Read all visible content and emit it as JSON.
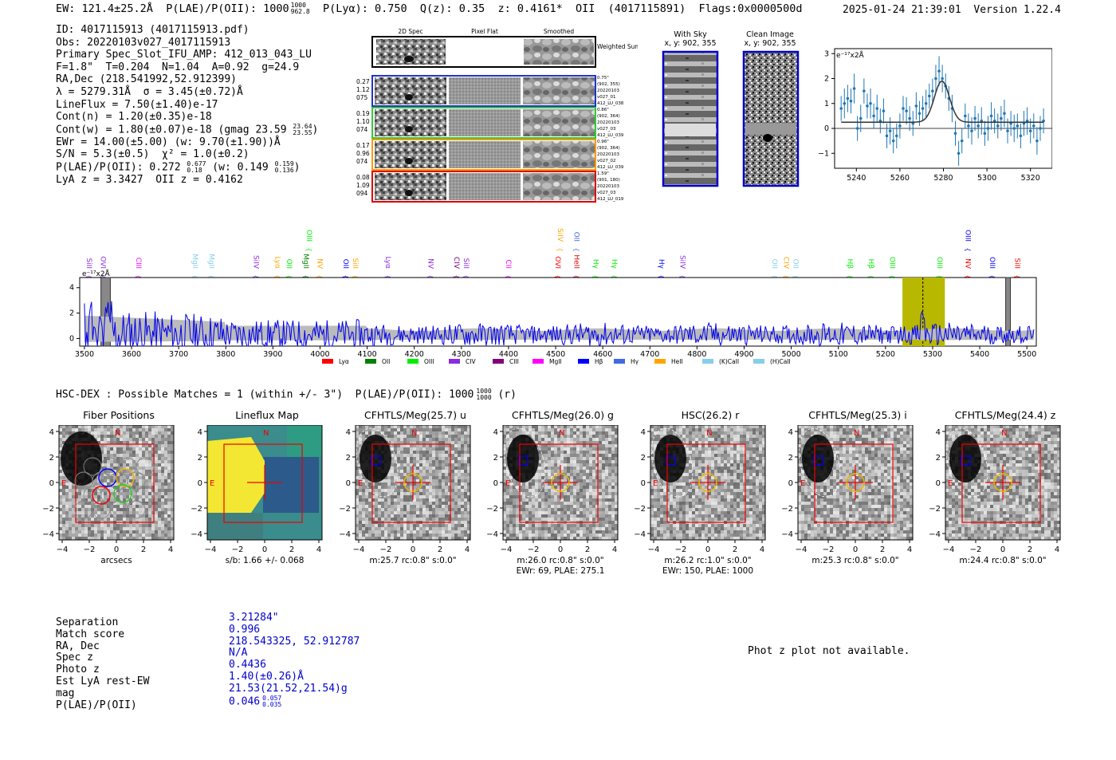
{
  "header": {
    "ew": "EW: 121.4±25.2Å",
    "plae_label": "P(LAE)/P(OII): 1000",
    "plae_sup": "1000",
    "plae_sub": "962.8",
    "plya": "P(Lyα): 0.750",
    "qz": "Q(z): 0.35",
    "z": "z: 0.4161*",
    "line": "OII",
    "id_paren": "(4017115891)",
    "flags": "Flags:0x0000500d",
    "datetime": "2025-01-24 21:39:01",
    "version": "Version 1.22.4"
  },
  "info": {
    "id": "ID: 4017115913 (4017115913.pdf)",
    "obs": "Obs: 20220103v027_4017115913",
    "slot": "Primary Spec_Slot_IFU_AMP: 412_013_043_LU",
    "params": "F=1.8\"  T=0.204  N=1.04  A=0.92  g=24.9",
    "radec": "RA,Dec (218.541992,52.912399)",
    "lambda": "λ = 5279.31Å  σ = 3.45(±0.72)Å",
    "lineflux": "LineFlux = 7.50(±1.40)e-17",
    "contn": "Cont(n) = 1.20(±0.35)e-18",
    "contw": "Cont(w) = 1.80(±0.07)e-18 (gmag 23.59",
    "contw_sup": "23.64",
    "contw_sub": "23.55",
    "contw_end": ")",
    "ewr": "EWr = 14.00(±5.00) (w: 9.70(±1.90))Å",
    "sn": "S/N = 5.3(±0.5)  χ² = 1.0(±0.2)",
    "plae": "P(LAE)/P(OII): 0.272",
    "plae_sup": "0.677",
    "plae_sub": "0.18",
    "plae_w": " (w: 0.149",
    "plae_w_sup": "0.159",
    "plae_w_sub": "0.136",
    "plae_w_end": ")",
    "lyaz": "LyA z = 3.3427  OII z = 0.4162"
  },
  "spec_panel": {
    "col_titles": [
      "2D Spec",
      "Pixel Flat",
      "Smoothed"
    ],
    "weighted_sum": "Weighted Sum",
    "rows": [
      {
        "left": [
          "0.27",
          "1.12",
          "075"
        ],
        "right": [
          "0.75\"",
          "(902, 355)",
          "20220103",
          "v027_01",
          "412_LU_038"
        ],
        "color": "#2233cc"
      },
      {
        "left": [
          "0.19",
          "1.10",
          "074"
        ],
        "right": [
          "0.86\"",
          "(902, 364)",
          "20220103",
          "v027_03",
          "412_LU_039"
        ],
        "color": "#33cc33"
      },
      {
        "left": [
          "0.17",
          "0.96",
          "074"
        ],
        "right": [
          "0.96\"",
          "(902, 364)",
          "20220103",
          "v027_02",
          "412_LU_039"
        ],
        "color": "#ff9900"
      },
      {
        "left": [
          "0.08",
          "1.09",
          "094"
        ],
        "right": [
          "1.59\"",
          "(901, 180)",
          "20220103",
          "v027_03",
          "412_LU_019"
        ],
        "color": "#dd0000"
      }
    ]
  },
  "sky": {
    "with_sky_title": "With Sky",
    "with_sky_coords": "x, y: 902, 355",
    "clean_title": "Clean Image",
    "clean_coords": "x, y: 902, 355"
  },
  "chart_data": [
    {
      "id": "line-zoom",
      "type": "scatter",
      "title": "",
      "ylabel": "e⁻¹⁷x2Å",
      "xlim": [
        5230,
        5330
      ],
      "ylim": [
        -1.6,
        3.2
      ],
      "xticks": [
        5240,
        5260,
        5280,
        5300,
        5320
      ],
      "yticks": [
        -1,
        0,
        1,
        2,
        3
      ],
      "points": [
        [
          5233,
          0.8,
          0.5
        ],
        [
          5234.5,
          1.0,
          0.6
        ],
        [
          5236,
          1.2,
          0.55
        ],
        [
          5237.5,
          1.1,
          0.5
        ],
        [
          5239,
          1.6,
          0.6
        ],
        [
          5240.5,
          0.0,
          0.5
        ],
        [
          5242,
          0.4,
          0.55
        ],
        [
          5243.5,
          1.5,
          0.5
        ],
        [
          5245,
          0.9,
          0.5
        ],
        [
          5246.5,
          1.0,
          0.6
        ],
        [
          5248,
          0.5,
          0.5
        ],
        [
          5249.5,
          0.8,
          0.55
        ],
        [
          5251,
          0.3,
          0.5
        ],
        [
          5252.5,
          0.7,
          0.5
        ],
        [
          5254,
          -0.3,
          0.5
        ],
        [
          5255.5,
          -0.1,
          0.55
        ],
        [
          5257,
          -0.5,
          0.5
        ],
        [
          5258.5,
          -0.3,
          0.5
        ],
        [
          5260,
          0.1,
          0.5
        ],
        [
          5261.5,
          0.8,
          0.5
        ],
        [
          5263,
          0.7,
          0.55
        ],
        [
          5264.5,
          0.4,
          0.5
        ],
        [
          5266,
          0.2,
          0.5
        ],
        [
          5267.5,
          0.9,
          0.55
        ],
        [
          5269,
          0.6,
          0.5
        ],
        [
          5270.5,
          0.8,
          0.5
        ],
        [
          5272,
          1.0,
          0.55
        ],
        [
          5273.5,
          1.3,
          0.5
        ],
        [
          5275,
          1.5,
          0.5
        ],
        [
          5276.5,
          2.0,
          0.55
        ],
        [
          5278,
          2.3,
          0.6
        ],
        [
          5279.5,
          2.0,
          0.55
        ],
        [
          5281,
          1.7,
          0.5
        ],
        [
          5282.5,
          1.2,
          0.5
        ],
        [
          5284,
          0.8,
          0.55
        ],
        [
          5285.5,
          -0.2,
          0.5
        ],
        [
          5287,
          -1.0,
          0.5
        ],
        [
          5288.5,
          -0.5,
          0.5
        ],
        [
          5290,
          0.5,
          0.5
        ],
        [
          5291.5,
          0.1,
          0.5
        ],
        [
          5293,
          -0.1,
          0.55
        ],
        [
          5294.5,
          0.4,
          0.5
        ],
        [
          5296,
          0.1,
          0.5
        ],
        [
          5297.5,
          0.3,
          0.55
        ],
        [
          5299,
          -0.2,
          0.5
        ],
        [
          5300.5,
          0.0,
          0.5
        ],
        [
          5302,
          0.5,
          0.55
        ],
        [
          5303.5,
          0.3,
          0.5
        ],
        [
          5305,
          0.1,
          0.5
        ],
        [
          5306.5,
          0.4,
          0.5
        ],
        [
          5308,
          0.6,
          0.55
        ],
        [
          5309.5,
          -0.1,
          0.5
        ],
        [
          5311,
          0.2,
          0.5
        ],
        [
          5312.5,
          0.0,
          0.55
        ],
        [
          5314,
          0.1,
          0.5
        ],
        [
          5315.5,
          -0.3,
          0.5
        ],
        [
          5317,
          0.2,
          0.5
        ],
        [
          5318.5,
          0.3,
          0.55
        ],
        [
          5320,
          -0.1,
          0.5
        ],
        [
          5321.5,
          0.1,
          0.5
        ],
        [
          5323,
          -0.5,
          0.55
        ],
        [
          5324.5,
          0.0,
          0.5
        ],
        [
          5326,
          0.3,
          0.5
        ]
      ],
      "fit": {
        "center": 5279.3,
        "sigma": 3.45,
        "amp": 1.65,
        "baseline": 0.25
      }
    },
    {
      "id": "full-spectrum",
      "type": "line",
      "ylabel": "e⁻¹⁷x2Å",
      "xlim": [
        3490,
        5520
      ],
      "ylim": [
        -0.6,
        4.8
      ],
      "xticks": [
        3500,
        3600,
        3700,
        3800,
        3900,
        4000,
        4100,
        4200,
        4300,
        4400,
        4500,
        4600,
        4700,
        4800,
        4900,
        5000,
        5100,
        5200,
        5300,
        5400,
        5500
      ],
      "yticks": [
        0,
        2,
        4
      ],
      "highlight": [
        5236,
        5326
      ],
      "line_center": 5279.3,
      "gray_bands": [
        [
          3535,
          3555
        ],
        [
          5455,
          5465
        ]
      ],
      "legend": [
        {
          "label": "Lyα",
          "color": "#ff0000"
        },
        {
          "label": "OII",
          "color": "#008000"
        },
        {
          "label": "OIII",
          "color": "#00ee00"
        },
        {
          "label": "CIV",
          "color": "#8a2be2"
        },
        {
          "label": "CIII",
          "color": "#800080"
        },
        {
          "label": "MgII",
          "color": "#ff00ff"
        },
        {
          "label": "Hβ",
          "color": "#0000ff"
        },
        {
          "label": "Hγ",
          "color": "#4169e1"
        },
        {
          "label": "HeII",
          "color": "#ffa500"
        },
        {
          "label": "(K)CaII",
          "color": "#87ceeb"
        },
        {
          "label": "(H)CaII",
          "color": "#87ceeb"
        }
      ],
      "line_labels": [
        {
          "w": 3505,
          "t": "SiII",
          "c": "#8a2be2",
          "hi": false
        },
        {
          "w": 3535,
          "t": "OVI",
          "c": "#8a2be2",
          "hi": false
        },
        {
          "w": 3610,
          "t": "CIII",
          "c": "#ff00ff",
          "hi": false
        },
        {
          "w": 3730,
          "t": "MgII",
          "c": "#87ceeb",
          "hi": false
        },
        {
          "w": 3765,
          "t": "MgII",
          "c": "#87ceeb",
          "hi": false
        },
        {
          "w": 3860,
          "t": "SiIV",
          "c": "#8a2be2",
          "hi": false
        },
        {
          "w": 3905,
          "t": "Lyα",
          "c": "#ffa500",
          "hi": false
        },
        {
          "w": 3930,
          "t": "OII",
          "c": "#00ee00",
          "hi": false
        },
        {
          "w": 3965,
          "t": "MgII",
          "c": "#008000",
          "hi": false
        },
        {
          "w": 3972,
          "t": "OIII",
          "c": "#00ee00",
          "hi": true
        },
        {
          "w": 3995,
          "t": "NV",
          "c": "#ffa500",
          "hi": false
        },
        {
          "w": 4050,
          "t": "OII",
          "c": "#0000ff",
          "hi": false
        },
        {
          "w": 4070,
          "t": "SiII",
          "c": "#ffa500",
          "hi": false
        },
        {
          "w": 4140,
          "t": "Lyα",
          "c": "#8a2be2",
          "hi": false
        },
        {
          "w": 4230,
          "t": "NV",
          "c": "#8a2be2",
          "hi": false
        },
        {
          "w": 4285,
          "t": "CIV",
          "c": "#800080",
          "hi": false
        },
        {
          "w": 4305,
          "t": "SiII",
          "c": "#8a2be2",
          "hi": false
        },
        {
          "w": 4395,
          "t": "CII",
          "c": "#ff00ff",
          "hi": false
        },
        {
          "w": 4500,
          "t": "OVI",
          "c": "#ff0000",
          "hi": false
        },
        {
          "w": 4505,
          "t": "SiIV",
          "c": "#ffa500",
          "hi": true
        },
        {
          "w": 4540,
          "t": "OII",
          "c": "#4169e1",
          "hi": true
        },
        {
          "w": 4540,
          "t": "HeII",
          "c": "#dd0000",
          "hi": false
        },
        {
          "w": 4580,
          "t": "Hγ",
          "c": "#00ee00",
          "hi": false
        },
        {
          "w": 4620,
          "t": "Hγ",
          "c": "#00ee00",
          "hi": false
        },
        {
          "w": 4720,
          "t": "Hγ",
          "c": "#0000ff",
          "hi": false
        },
        {
          "w": 4765,
          "t": "SiIV",
          "c": "#8a2be2",
          "hi": false
        },
        {
          "w": 4960,
          "t": "OII",
          "c": "#87ceeb",
          "hi": false
        },
        {
          "w": 4985,
          "t": "CIV",
          "c": "#ffa500",
          "hi": false
        },
        {
          "w": 5005,
          "t": "OII",
          "c": "#87ceeb",
          "hi": false
        },
        {
          "w": 5120,
          "t": "Hβ",
          "c": "#00ee00",
          "hi": false
        },
        {
          "w": 5165,
          "t": "Hβ",
          "c": "#00ee00",
          "hi": false
        },
        {
          "w": 5210,
          "t": "OIII",
          "c": "#00ee00",
          "hi": false
        },
        {
          "w": 5310,
          "t": "OIII",
          "c": "#00ee00",
          "hi": false
        },
        {
          "w": 5370,
          "t": "NV",
          "c": "#ff0000",
          "hi": false
        },
        {
          "w": 5370,
          "t": "OIII",
          "c": "#0000ff",
          "hi": true
        },
        {
          "w": 5422,
          "t": "OIII",
          "c": "#0000ff",
          "hi": false
        },
        {
          "w": 5475,
          "t": "SiII",
          "c": "#ff0000",
          "hi": false
        }
      ]
    }
  ],
  "hsc": {
    "title": "HSC-DEX : Possible Matches = 1 (within +/- 3\")  P(LAE)/P(OII): 1000",
    "title_sup": "1000",
    "title_sub": "1000",
    "title_end": " (r)"
  },
  "cutouts": [
    {
      "title": "Fiber Positions",
      "cap1": "arcsecs",
      "cap2": "",
      "type": "fiber"
    },
    {
      "title": "Lineflux Map",
      "cap1": "s/b: 1.66 +/- 0.068",
      "cap2": "",
      "type": "lineflux"
    },
    {
      "title": "CFHTLS/Meg(25.7) u",
      "cap1": "m:25.7 rc:0.8\"  s:0.0\"",
      "cap2": "",
      "type": "img"
    },
    {
      "title": "CFHTLS/Meg(26.0) g",
      "cap1": "m:26.0 rc:0.8\"  s:0.0\"",
      "cap2": "EWr: 69, PLAE: 275.1",
      "type": "img"
    },
    {
      "title": "HSC(26.2) r",
      "cap1": "m:26.2 rc:1.0\"  s:0.0\"",
      "cap2": "EWr: 150, PLAE: 1000",
      "type": "img"
    },
    {
      "title": "CFHTLS/Meg(25.3) i",
      "cap1": "m:25.3 rc:0.8\"  s:0.0\"",
      "cap2": "",
      "type": "img"
    },
    {
      "title": "CFHTLS/Meg(24.4) z",
      "cap1": "m:24.4 rc:0.8\"  s:0.0\"",
      "cap2": "",
      "type": "img"
    }
  ],
  "cutout_axis": {
    "ticks": [
      "-4",
      "-2",
      "0",
      "2",
      "4"
    ],
    "yticks": [
      "4",
      "2",
      "0",
      "−2",
      "−4"
    ],
    "north": "N",
    "east": "E"
  },
  "separation": {
    "labels": [
      "Separation",
      "Match score",
      "RA, Dec",
      "Spec z",
      "Photo z",
      "Est LyA rest-EW",
      "mag",
      "P(LAE)/P(OII)"
    ],
    "values": [
      "3.21284\"",
      "0.996",
      "218.543325, 52.912787",
      "N/A",
      "0.4436",
      "1.40(±0.26)Å",
      "21.53(21.52,21.54)g",
      "0.046"
    ],
    "plae_sup": "0.057",
    "plae_sub": "0.035"
  },
  "photz_msg": "Phot z plot not available."
}
